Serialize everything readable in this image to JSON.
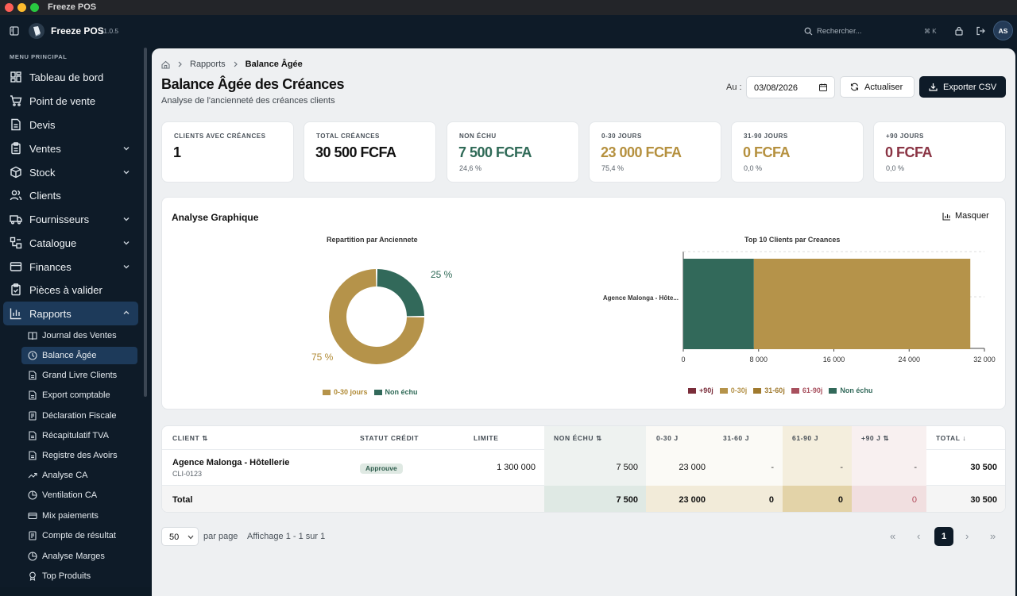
{
  "window": {
    "title": "Freeze POS"
  },
  "appbar": {
    "name": "Freeze POS",
    "version": "v1.0.5",
    "search_placeholder": "Rechercher...",
    "shortcut": "⌘ K",
    "avatar": "AS"
  },
  "sidebar": {
    "section": "MENU PRINCIPAL",
    "items": [
      {
        "label": "Tableau de bord",
        "icon": "dashboard-icon"
      },
      {
        "label": "Point de vente",
        "icon": "cart-icon"
      },
      {
        "label": "Devis",
        "icon": "document-icon"
      },
      {
        "label": "Ventes",
        "icon": "clipboard-icon"
      },
      {
        "label": "Stock",
        "icon": "box-icon"
      },
      {
        "label": "Clients",
        "icon": "users-icon"
      },
      {
        "label": "Fournisseurs",
        "icon": "truck-icon"
      },
      {
        "label": "Catalogue",
        "icon": "catalog-icon"
      },
      {
        "label": "Finances",
        "icon": "card-icon"
      },
      {
        "label": "Pièces à valider",
        "icon": "clipboard-check-icon"
      },
      {
        "label": "Rapports",
        "icon": "bar-chart-icon"
      }
    ],
    "sub": [
      {
        "label": "Journal des Ventes",
        "icon": "book-icon"
      },
      {
        "label": "Balance Âgée",
        "icon": "clock-icon"
      },
      {
        "label": "Grand Livre Clients",
        "icon": "file-icon"
      },
      {
        "label": "Export comptable",
        "icon": "file-icon"
      },
      {
        "label": "Déclaration Fiscale",
        "icon": "receipt-icon"
      },
      {
        "label": "Récapitulatif TVA",
        "icon": "file-icon"
      },
      {
        "label": "Registre des Avoirs",
        "icon": "file-icon"
      },
      {
        "label": "Analyse CA",
        "icon": "trend-icon"
      },
      {
        "label": "Ventilation CA",
        "icon": "pie-icon"
      },
      {
        "label": "Mix paiements",
        "icon": "card-icon"
      },
      {
        "label": "Compte de résultat",
        "icon": "receipt-icon"
      },
      {
        "label": "Analyse Marges",
        "icon": "pie-icon"
      },
      {
        "label": "Top Produits",
        "icon": "award-icon"
      }
    ]
  },
  "breadcrumb": {
    "parent": "Rapports",
    "current": "Balance Âgée"
  },
  "page": {
    "title": "Balance Âgée des Créances",
    "subtitle": "Analyse de l'ancienneté des créances clients"
  },
  "toolbar": {
    "date_label": "Au :",
    "date_value": "03/08/2026",
    "refresh": "Actualiser",
    "export": "Exporter CSV"
  },
  "kpis": [
    {
      "title": "CLIENTS AVEC CRÉANCES",
      "value": "1",
      "pct": "",
      "color": "#111111"
    },
    {
      "title": "TOTAL CRÉANCES",
      "value": "30 500 FCFA",
      "pct": "",
      "color": "#111111"
    },
    {
      "title": "NON ÉCHU",
      "value": "7 500 FCFA",
      "pct": "24,6 %",
      "color": "#2f6a57"
    },
    {
      "title": "0-30 JOURS",
      "value": "23 000 FCFA",
      "pct": "75,4 %",
      "color": "#b5903e"
    },
    {
      "title": "31-90 JOURS",
      "value": "0 FCFA",
      "pct": "0,0 %",
      "color": "#b5903e"
    },
    {
      "title": "+90 JOURS",
      "value": "0 FCFA",
      "pct": "0,0 %",
      "color": "#8a3444"
    }
  ],
  "analysis": {
    "title": "Analyse Graphique",
    "hide": "Masquer"
  },
  "chart_data": [
    {
      "type": "pie",
      "title": "Repartition par Anciennete",
      "categories": [
        "0-30 jours",
        "Non échu"
      ],
      "values": [
        75,
        25
      ],
      "labels": [
        "75 %",
        "25 %"
      ],
      "colors": [
        "#b5934a",
        "#32695a"
      ],
      "legend": "bottom"
    },
    {
      "type": "bar",
      "orientation": "horizontal",
      "stacked": true,
      "title": "Top 10 Clients par Creances",
      "categories": [
        "Agence Malonga - Hôte..."
      ],
      "series": [
        {
          "name": "Non échu",
          "values": [
            7500
          ],
          "color": "#32695a"
        },
        {
          "name": "0-30j",
          "values": [
            23000
          ],
          "color": "#b5934a"
        },
        {
          "name": "31-60j",
          "values": [
            0
          ],
          "color": "#a07a2e"
        },
        {
          "name": "61-90j",
          "values": [
            0
          ],
          "color": "#a8505e"
        },
        {
          "name": "+90j",
          "values": [
            0
          ],
          "color": "#7a2d3a"
        }
      ],
      "xlim": [
        0,
        32000
      ],
      "xticks": [
        0,
        8000,
        16000,
        24000,
        32000
      ],
      "xtick_labels": [
        "0",
        "8 000",
        "16 000",
        "24 000",
        "32 000"
      ],
      "legend_order": [
        "+90j",
        "0-30j",
        "31-60j",
        "61-90j",
        "Non échu"
      ],
      "legend": "bottom"
    }
  ],
  "table": {
    "headers": [
      "CLIENT",
      "STATUT CRÉDIT",
      "LIMITE",
      "NON ÉCHU",
      "0-30 J",
      "31-60 J",
      "61-90 J",
      "+90 J",
      "TOTAL"
    ],
    "rows": [
      {
        "client": "Agence Malonga - Hôtellerie",
        "code": "CLI-0123",
        "status": "Approuve",
        "limit": "1 300 000",
        "non_echu": "7 500",
        "d30": "23 000",
        "d60": "-",
        "d90": "-",
        "d90p": "-",
        "total": "30 500"
      }
    ],
    "total": {
      "label": "Total",
      "non_echu": "7 500",
      "d30": "23 000",
      "d60": "0",
      "d90": "0",
      "d90p": "0",
      "total": "30 500"
    }
  },
  "pagination": {
    "per_page": "50",
    "per_page_label": "par page",
    "info": "Affichage 1 - 1 sur 1",
    "current": "1"
  }
}
